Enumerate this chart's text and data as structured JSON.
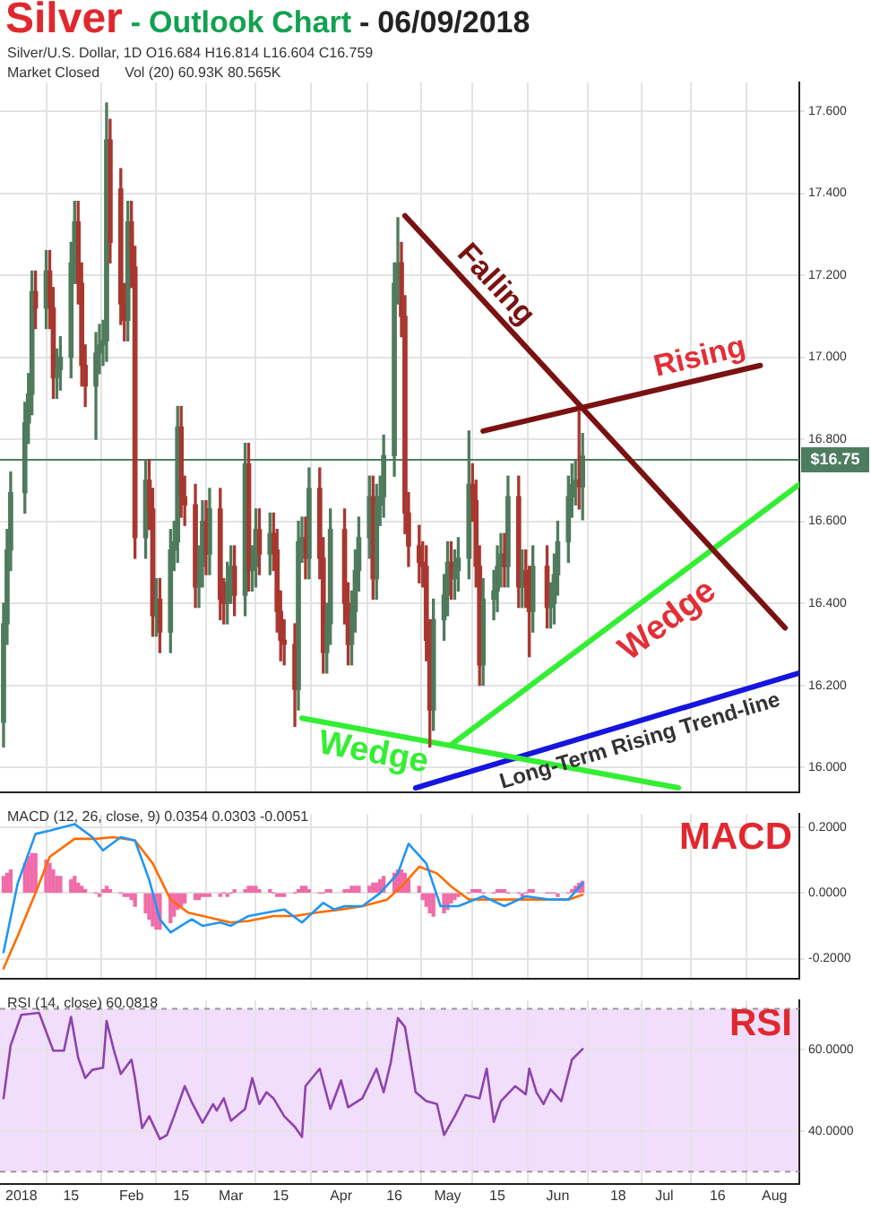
{
  "chart_data": [
    {
      "type": "candlestick",
      "title": "Silver - Outlook Chart - 06/09/2018",
      "subtitle": "Silver/U.S. Dollar, 1D  O16.684 H16.814 L16.604 C16.759",
      "annotations": [
        "Market Closed",
        "Vol (20)  60.93K  80.565K"
      ],
      "x": [
        "2017-12-27",
        "2017-12-28",
        "2017-12-29",
        "2018-01-02",
        "2018-01-03",
        "2018-01-04",
        "2018-01-05",
        "2018-01-08",
        "2018-01-09",
        "2018-01-10",
        "2018-01-11",
        "2018-01-12",
        "2018-01-15",
        "2018-01-16",
        "2018-01-17",
        "2018-01-18",
        "2018-01-19",
        "2018-01-22",
        "2018-01-23",
        "2018-01-24",
        "2018-01-25",
        "2018-01-26",
        "2018-01-29",
        "2018-01-30",
        "2018-01-31",
        "2018-02-01",
        "2018-02-02",
        "2018-02-05",
        "2018-02-06",
        "2018-02-07",
        "2018-02-08",
        "2018-02-09",
        "2018-02-12",
        "2018-02-13",
        "2018-02-14",
        "2018-02-15",
        "2018-02-16",
        "2018-02-19",
        "2018-02-20",
        "2018-02-21",
        "2018-02-22",
        "2018-02-23",
        "2018-02-26",
        "2018-02-27",
        "2018-02-28",
        "2018-03-01",
        "2018-03-02",
        "2018-03-05",
        "2018-03-06",
        "2018-03-07",
        "2018-03-08",
        "2018-03-09",
        "2018-03-12",
        "2018-03-13",
        "2018-03-14",
        "2018-03-15",
        "2018-03-16",
        "2018-03-19",
        "2018-03-20",
        "2018-03-21",
        "2018-03-22",
        "2018-03-23",
        "2018-03-26",
        "2018-03-27",
        "2018-03-28",
        "2018-03-29",
        "2018-04-02",
        "2018-04-03",
        "2018-04-04",
        "2018-04-05",
        "2018-04-06",
        "2018-04-09",
        "2018-04-10",
        "2018-04-11",
        "2018-04-12",
        "2018-04-13",
        "2018-04-16",
        "2018-04-17",
        "2018-04-18",
        "2018-04-19",
        "2018-04-20",
        "2018-04-23",
        "2018-04-24",
        "2018-04-25",
        "2018-04-26",
        "2018-04-27",
        "2018-04-30",
        "2018-05-01",
        "2018-05-02",
        "2018-05-03",
        "2018-05-04",
        "2018-05-07",
        "2018-05-08",
        "2018-05-09",
        "2018-05-10",
        "2018-05-11",
        "2018-05-14",
        "2018-05-15",
        "2018-05-16",
        "2018-05-17",
        "2018-05-18",
        "2018-05-21",
        "2018-05-22",
        "2018-05-23",
        "2018-05-24",
        "2018-05-25",
        "2018-05-29",
        "2018-05-30",
        "2018-05-31",
        "2018-06-01",
        "2018-06-04",
        "2018-06-05",
        "2018-06-06",
        "2018-06-07",
        "2018-06-08"
      ],
      "ohlc": [
        [
          16.11,
          16.4,
          16.05,
          16.35
        ],
        [
          16.35,
          16.58,
          16.3,
          16.53
        ],
        [
          16.53,
          16.72,
          16.48,
          16.67
        ],
        [
          16.67,
          16.89,
          16.62,
          16.84
        ],
        [
          16.84,
          16.96,
          16.79,
          16.91
        ],
        [
          16.91,
          17.21,
          16.86,
          17.16
        ],
        [
          17.16,
          17.21,
          17.07,
          17.12
        ],
        [
          17.12,
          17.26,
          17.07,
          17.21
        ],
        [
          17.21,
          17.26,
          17.07,
          17.12
        ],
        [
          17.12,
          17.17,
          16.9,
          16.95
        ],
        [
          16.95,
          17.02,
          16.9,
          16.97
        ],
        [
          16.97,
          17.05,
          16.92,
          17.0
        ],
        [
          17.0,
          17.28,
          16.95,
          17.23
        ],
        [
          17.23,
          17.38,
          17.18,
          17.33
        ],
        [
          17.33,
          17.38,
          17.13,
          17.18
        ],
        [
          17.18,
          17.23,
          16.93,
          16.98
        ],
        [
          16.98,
          17.03,
          16.88,
          16.93
        ],
        [
          16.93,
          17.06,
          16.8,
          17.01
        ],
        [
          17.01,
          17.08,
          16.96,
          17.03
        ],
        [
          17.03,
          17.09,
          16.98,
          17.04
        ],
        [
          17.04,
          17.62,
          16.99,
          17.53
        ],
        [
          17.53,
          17.58,
          17.23,
          17.28
        ],
        [
          17.41,
          17.46,
          17.08,
          17.13
        ],
        [
          17.13,
          17.18,
          17.04,
          17.09
        ],
        [
          17.09,
          17.38,
          17.04,
          17.33
        ],
        [
          17.33,
          17.38,
          17.17,
          17.22
        ],
        [
          17.22,
          17.27,
          16.51,
          16.56
        ],
        [
          16.56,
          16.75,
          16.51,
          16.7
        ],
        [
          16.7,
          16.75,
          16.58,
          16.63
        ],
        [
          16.63,
          16.68,
          16.32,
          16.37
        ],
        [
          16.37,
          16.46,
          16.32,
          16.41
        ],
        [
          16.41,
          16.46,
          16.28,
          16.33
        ],
        [
          16.33,
          16.58,
          16.28,
          16.53
        ],
        [
          16.53,
          16.6,
          16.48,
          16.55
        ],
        [
          16.55,
          16.88,
          16.5,
          16.83
        ],
        [
          16.83,
          16.88,
          16.61,
          16.66
        ],
        [
          16.66,
          16.71,
          16.59,
          16.64
        ],
        [
          16.64,
          16.69,
          16.39,
          16.44
        ],
        [
          16.44,
          16.54,
          16.39,
          16.49
        ],
        [
          16.49,
          16.65,
          16.44,
          16.6
        ],
        [
          16.6,
          16.65,
          16.47,
          16.52
        ],
        [
          16.52,
          16.68,
          16.47,
          16.63
        ],
        [
          16.63,
          16.68,
          16.36,
          16.41
        ],
        [
          16.41,
          16.46,
          16.35,
          16.4
        ],
        [
          16.4,
          16.5,
          16.35,
          16.45
        ],
        [
          16.45,
          16.54,
          16.4,
          16.49
        ],
        [
          16.49,
          16.54,
          16.37,
          16.42
        ],
        [
          16.42,
          16.79,
          16.37,
          16.74
        ],
        [
          16.74,
          16.79,
          16.43,
          16.48
        ],
        [
          16.48,
          16.54,
          16.43,
          16.49
        ],
        [
          16.49,
          16.63,
          16.44,
          16.58
        ],
        [
          16.58,
          16.63,
          16.47,
          16.52
        ],
        [
          16.52,
          16.62,
          16.47,
          16.57
        ],
        [
          16.57,
          16.62,
          16.48,
          16.53
        ],
        [
          16.53,
          16.58,
          16.33,
          16.38
        ],
        [
          16.38,
          16.43,
          16.26,
          16.31
        ],
        [
          16.31,
          16.36,
          16.25,
          16.3
        ],
        [
          16.3,
          16.35,
          16.1,
          16.19
        ],
        [
          16.19,
          16.6,
          16.14,
          16.55
        ],
        [
          16.55,
          16.61,
          16.5,
          16.56
        ],
        [
          16.56,
          16.61,
          16.46,
          16.51
        ],
        [
          16.51,
          16.73,
          16.46,
          16.68
        ],
        [
          16.68,
          16.73,
          16.46,
          16.51
        ],
        [
          16.51,
          16.56,
          16.23,
          16.28
        ],
        [
          16.28,
          16.4,
          16.23,
          16.35
        ],
        [
          16.35,
          16.63,
          16.3,
          16.58
        ],
        [
          16.58,
          16.63,
          16.35,
          16.4
        ],
        [
          16.4,
          16.45,
          16.25,
          16.3
        ],
        [
          16.3,
          16.43,
          16.25,
          16.38
        ],
        [
          16.38,
          16.53,
          16.33,
          16.48
        ],
        [
          16.48,
          16.61,
          16.43,
          16.56
        ],
        [
          16.56,
          16.71,
          16.51,
          16.66
        ],
        [
          16.66,
          16.71,
          16.41,
          16.46
        ],
        [
          16.46,
          16.69,
          16.41,
          16.64
        ],
        [
          16.64,
          16.71,
          16.59,
          16.66
        ],
        [
          16.66,
          16.81,
          16.61,
          16.76
        ],
        [
          16.76,
          17.23,
          16.71,
          17.18
        ],
        [
          17.18,
          17.34,
          17.13,
          17.23
        ],
        [
          17.23,
          17.28,
          17.05,
          17.1
        ],
        [
          17.1,
          17.15,
          16.57,
          16.62
        ],
        [
          16.62,
          16.67,
          16.49,
          16.54
        ],
        [
          16.54,
          16.59,
          16.45,
          16.5
        ],
        [
          16.5,
          16.55,
          16.44,
          16.49
        ],
        [
          16.49,
          16.54,
          16.26,
          16.31
        ],
        [
          16.31,
          16.36,
          16.05,
          16.14
        ],
        [
          16.14,
          16.41,
          16.09,
          16.36
        ],
        [
          16.36,
          16.47,
          16.31,
          16.42
        ],
        [
          16.42,
          16.55,
          16.37,
          16.5
        ],
        [
          16.5,
          16.55,
          16.41,
          16.46
        ],
        [
          16.46,
          16.53,
          16.41,
          16.48
        ],
        [
          16.48,
          16.56,
          16.43,
          16.51
        ],
        [
          16.51,
          16.82,
          16.46,
          16.69
        ],
        [
          16.69,
          16.74,
          16.6,
          16.65
        ],
        [
          16.65,
          16.7,
          16.44,
          16.49
        ],
        [
          16.49,
          16.54,
          16.2,
          16.25
        ],
        [
          16.25,
          16.46,
          16.2,
          16.41
        ],
        [
          16.41,
          16.48,
          16.36,
          16.43
        ],
        [
          16.43,
          16.54,
          16.38,
          16.49
        ],
        [
          16.49,
          16.57,
          16.44,
          16.52
        ],
        [
          16.52,
          16.57,
          16.44,
          16.49
        ],
        [
          16.49,
          16.71,
          16.44,
          16.66
        ],
        [
          16.66,
          16.71,
          16.39,
          16.44
        ],
        [
          16.44,
          16.53,
          16.39,
          16.48
        ],
        [
          16.48,
          16.53,
          16.39,
          16.44
        ],
        [
          16.44,
          16.49,
          16.27,
          16.38
        ],
        [
          16.38,
          16.54,
          16.33,
          16.49
        ],
        [
          16.49,
          16.54,
          16.34,
          16.39
        ],
        [
          16.39,
          16.45,
          16.34,
          16.4
        ],
        [
          16.4,
          16.52,
          16.35,
          16.47
        ],
        [
          16.47,
          16.6,
          16.42,
          16.55
        ],
        [
          16.55,
          16.71,
          16.5,
          16.66
        ],
        [
          16.66,
          16.74,
          16.61,
          16.69
        ],
        [
          16.69,
          16.75,
          16.64,
          16.7
        ],
        [
          16.7,
          16.87,
          16.63,
          16.684
        ],
        [
          16.684,
          16.814,
          16.604,
          16.759
        ]
      ],
      "colors": [
        "#4f7b5c",
        "#4f7b5c",
        "#4f7b5c",
        "#4f7b5c",
        "#4f7b5c",
        "#4f7b5c",
        "#a8372f",
        "#4f7b5c",
        "#a8372f",
        "#a8372f",
        "#4f7b5c",
        "#4f7b5c",
        "#4f7b5c",
        "#4f7b5c",
        "#a8372f",
        "#a8372f",
        "#a8372f",
        "#4f7b5c",
        "#4f7b5c",
        "#4f7b5c",
        "#4f7b5c",
        "#a8372f",
        "#a8372f",
        "#a8372f",
        "#4f7b5c",
        "#a8372f",
        "#a8372f",
        "#4f7b5c",
        "#a8372f",
        "#a8372f",
        "#4f7b5c",
        "#a8372f",
        "#4f7b5c",
        "#4f7b5c",
        "#4f7b5c",
        "#a8372f",
        "#a8372f",
        "#a8372f",
        "#4f7b5c",
        "#4f7b5c",
        "#a8372f",
        "#4f7b5c",
        "#a8372f",
        "#a8372f",
        "#4f7b5c",
        "#4f7b5c",
        "#a8372f",
        "#4f7b5c",
        "#a8372f",
        "#4f7b5c",
        "#4f7b5c",
        "#a8372f",
        "#4f7b5c",
        "#a8372f",
        "#a8372f",
        "#a8372f",
        "#a8372f",
        "#a8372f",
        "#4f7b5c",
        "#4f7b5c",
        "#a8372f",
        "#4f7b5c",
        "#a8372f",
        "#a8372f",
        "#4f7b5c",
        "#4f7b5c",
        "#a8372f",
        "#a8372f",
        "#4f7b5c",
        "#4f7b5c",
        "#4f7b5c",
        "#4f7b5c",
        "#a8372f",
        "#4f7b5c",
        "#4f7b5c",
        "#4f7b5c",
        "#4f7b5c",
        "#4f7b5c",
        "#a8372f",
        "#a8372f",
        "#a8372f",
        "#a8372f",
        "#a8372f",
        "#a8372f",
        "#a8372f",
        "#4f7b5c",
        "#4f7b5c",
        "#4f7b5c",
        "#a8372f",
        "#4f7b5c",
        "#4f7b5c",
        "#4f7b5c",
        "#a8372f",
        "#a8372f",
        "#a8372f",
        "#4f7b5c",
        "#4f7b5c",
        "#4f7b5c",
        "#4f7b5c",
        "#a8372f",
        "#4f7b5c",
        "#a8372f",
        "#4f7b5c",
        "#a8372f",
        "#a8372f",
        "#4f7b5c",
        "#a8372f",
        "#4f7b5c",
        "#4f7b5c",
        "#4f7b5c",
        "#4f7b5c",
        "#4f7b5c",
        "#4f7b5c",
        "#a8372f",
        "#4f7b5c"
      ],
      "series": [
        {
          "type": "line",
          "name": "Falling",
          "color": "#7a1212",
          "x": [
            "2018-04-19",
            "2018-08-04"
          ],
          "values": [
            17.345,
            16.34
          ]
        },
        {
          "type": "line",
          "name": "Rising",
          "color": "#7a1212",
          "x": [
            "2018-05-11",
            "2018-07-28"
          ],
          "values": [
            16.82,
            16.98
          ]
        },
        {
          "type": "line",
          "name": "Wedge",
          "color": "#33ee33",
          "x": [
            "2018-05-02",
            "2018-08-08"
          ],
          "values": [
            16.055,
            16.69
          ]
        },
        {
          "type": "line",
          "name": "Wedge",
          "color": "#33ee33",
          "x": [
            "2018-03-21",
            "2018-07-05"
          ],
          "values": [
            16.12,
            15.95
          ]
        },
        {
          "type": "line",
          "name": "Long-Term Rising Trend-line",
          "color": "#1515dd",
          "x": [
            "2018-04-22",
            "2018-08-08"
          ],
          "values": [
            15.95,
            16.23
          ]
        }
      ],
      "ref_lines": [
        {
          "axis": "y",
          "value": 16.75,
          "label": "$16.75",
          "color": "#4d7d5f"
        }
      ],
      "xlim": [
        "2017-12-26",
        "2018-08-08"
      ],
      "xticks": [
        {
          "value": "2018-01-01",
          "label": null
        },
        {
          "value": "2018-01-15",
          "label": null
        },
        {
          "value": "2018-02-01",
          "label": null
        },
        {
          "value": "2018-02-15",
          "label": null
        },
        {
          "value": "2018-03-01",
          "label": null
        },
        {
          "value": "2018-03-15",
          "label": null
        },
        {
          "value": "2018-04-01",
          "label": null
        },
        {
          "value": "2018-04-16",
          "label": null
        },
        {
          "value": "2018-05-01",
          "label": null
        },
        {
          "value": "2018-05-15",
          "label": null
        },
        {
          "value": "2018-06-01",
          "label": null
        },
        {
          "value": "2018-06-18",
          "label": null
        },
        {
          "value": "2018-07-01",
          "label": null
        },
        {
          "value": "2018-07-16",
          "label": null
        },
        {
          "value": "2018-08-01",
          "label": null
        }
      ],
      "ylim": [
        15.94,
        17.67
      ],
      "yticks": [
        {
          "value": 16,
          "label": "16.000"
        },
        {
          "value": 16.2,
          "label": "16.200"
        },
        {
          "value": 16.4,
          "label": "16.400"
        },
        {
          "value": 16.6,
          "label": "16.600"
        },
        {
          "value": 16.8,
          "label": "16.800"
        },
        {
          "value": 17,
          "label": "17.000"
        },
        {
          "value": 17.2,
          "label": "17.200"
        },
        {
          "value": 17.4,
          "label": "17.400"
        },
        {
          "value": 17.6,
          "label": "17.600"
        }
      ],
      "grid": true,
      "tick_labels": "y"
    },
    {
      "type": "line",
      "title": "MACD",
      "subtitle": "MACD (12, 26, close, 9)  0.0354  0.0303  -0.0051",
      "x": [
        "2017-12-27",
        "2017-12-28",
        "2017-12-29",
        "2018-01-02",
        "2018-01-03",
        "2018-01-04",
        "2018-01-05",
        "2018-01-08",
        "2018-01-09",
        "2018-01-10",
        "2018-01-11",
        "2018-01-12",
        "2018-01-15",
        "2018-01-16",
        "2018-01-17",
        "2018-01-18",
        "2018-01-19",
        "2018-01-22",
        "2018-01-23",
        "2018-01-24",
        "2018-01-25",
        "2018-01-26",
        "2018-01-29",
        "2018-01-30",
        "2018-01-31",
        "2018-02-01",
        "2018-02-02",
        "2018-02-05",
        "2018-02-06",
        "2018-02-07",
        "2018-02-08",
        "2018-02-09",
        "2018-02-12",
        "2018-02-13",
        "2018-02-14",
        "2018-02-15",
        "2018-02-16",
        "2018-02-19",
        "2018-02-20",
        "2018-02-21",
        "2018-02-22",
        "2018-02-23",
        "2018-02-26",
        "2018-02-27",
        "2018-02-28",
        "2018-03-01",
        "2018-03-02",
        "2018-03-05",
        "2018-03-06",
        "2018-03-07",
        "2018-03-08",
        "2018-03-09",
        "2018-03-12",
        "2018-03-13",
        "2018-03-14",
        "2018-03-15",
        "2018-03-16",
        "2018-03-19",
        "2018-03-20",
        "2018-03-21",
        "2018-03-22",
        "2018-03-23",
        "2018-03-26",
        "2018-03-27",
        "2018-03-28",
        "2018-03-29",
        "2018-04-02",
        "2018-04-03",
        "2018-04-04",
        "2018-04-05",
        "2018-04-06",
        "2018-04-09",
        "2018-04-10",
        "2018-04-11",
        "2018-04-12",
        "2018-04-13",
        "2018-04-16",
        "2018-04-17",
        "2018-04-18",
        "2018-04-19",
        "2018-04-20",
        "2018-04-23",
        "2018-04-24",
        "2018-04-25",
        "2018-04-26",
        "2018-04-27",
        "2018-04-30",
        "2018-05-01",
        "2018-05-02",
        "2018-05-03",
        "2018-05-04",
        "2018-05-07",
        "2018-05-08",
        "2018-05-09",
        "2018-05-10",
        "2018-05-11",
        "2018-05-14",
        "2018-05-15",
        "2018-05-16",
        "2018-05-17",
        "2018-05-18",
        "2018-05-21",
        "2018-05-22",
        "2018-05-23",
        "2018-05-24",
        "2018-05-25",
        "2018-05-29",
        "2018-05-30",
        "2018-05-31",
        "2018-06-01",
        "2018-06-04",
        "2018-06-05",
        "2018-06-06",
        "2018-06-07",
        "2018-06-08"
      ],
      "series": [
        {
          "type": "bar",
          "color": "#f06ba8",
          "values": [
            0.05,
            0.06,
            0.07,
            0.09,
            0.11,
            0.12,
            0.12,
            0.1,
            0.09,
            0.07,
            0.05,
            0.05,
            0.04,
            0.05,
            0.03,
            0.02,
            0.01,
            0.0,
            -0.01,
            0.01,
            0.02,
            0.01,
            0.0,
            -0.01,
            -0.01,
            -0.02,
            -0.04,
            -0.06,
            -0.08,
            -0.1,
            -0.11,
            -0.11,
            -0.09,
            -0.07,
            -0.05,
            -0.04,
            -0.03,
            -0.02,
            -0.02,
            -0.01,
            -0.01,
            -0.01,
            -0.01,
            0.0,
            -0.01,
            0.0,
            0.01,
            0.01,
            0.02,
            0.02,
            0.02,
            0.01,
            0.01,
            0.0,
            -0.01,
            -0.01,
            -0.01,
            0.0,
            0.01,
            0.02,
            0.02,
            0.01,
            0.0,
            0.0,
            0.01,
            0.01,
            0.01,
            0.01,
            0.02,
            0.02,
            0.02,
            0.02,
            0.03,
            0.03,
            0.04,
            0.05,
            0.06,
            0.07,
            0.07,
            0.06,
            0.04,
            0.02,
            -0.02,
            -0.04,
            -0.06,
            -0.07,
            -0.06,
            -0.05,
            -0.03,
            -0.02,
            -0.01,
            0.0,
            0.01,
            0.01,
            0.01,
            0.0,
            0.0,
            0.01,
            0.01,
            0.01,
            0.0,
            0.0,
            -0.01,
            0.0,
            0.01,
            0.01,
            0.0,
            0.0,
            0.0,
            -0.01,
            0.0,
            0.01,
            0.02,
            0.03,
            0.035
          ]
        },
        {
          "type": "line",
          "color": "#2196f3",
          "x": [
            "2017-12-27",
            "2017-12-31",
            "2018-01-05",
            "2018-01-09",
            "2018-01-16",
            "2018-01-21",
            "2018-01-24",
            "2018-01-29",
            "2018-02-02",
            "2018-02-06",
            "2018-02-09",
            "2018-02-12",
            "2018-02-15",
            "2018-02-18",
            "2018-02-21",
            "2018-02-26",
            "2018-03-01",
            "2018-03-06",
            "2018-03-11",
            "2018-03-16",
            "2018-03-21",
            "2018-03-27",
            "2018-03-30",
            "2018-04-02",
            "2018-04-07",
            "2018-04-12",
            "2018-04-17",
            "2018-04-20",
            "2018-04-25",
            "2018-04-29",
            "2018-05-04",
            "2018-05-11",
            "2018-05-17",
            "2018-05-23",
            "2018-05-30",
            "2018-06-04",
            "2018-06-08"
          ],
          "values": [
            -0.18,
            0.03,
            0.18,
            0.19,
            0.21,
            0.17,
            0.13,
            0.17,
            0.16,
            0.04,
            -0.08,
            -0.12,
            -0.1,
            -0.08,
            -0.1,
            -0.09,
            -0.1,
            -0.07,
            -0.06,
            -0.05,
            -0.09,
            -0.03,
            -0.05,
            -0.04,
            -0.04,
            0.0,
            0.06,
            0.15,
            0.09,
            -0.04,
            -0.04,
            -0.01,
            -0.04,
            -0.01,
            -0.02,
            -0.02,
            0.03
          ]
        },
        {
          "type": "line",
          "color": "#ff6d00",
          "x": [
            "2017-12-27",
            "2017-12-31",
            "2018-01-05",
            "2018-01-09",
            "2018-01-16",
            "2018-01-22",
            "2018-01-27",
            "2018-02-02",
            "2018-02-07",
            "2018-02-12",
            "2018-02-17",
            "2018-02-23",
            "2018-03-01",
            "2018-03-06",
            "2018-03-13",
            "2018-03-19",
            "2018-03-25",
            "2018-04-01",
            "2018-04-07",
            "2018-04-14",
            "2018-04-18",
            "2018-04-23",
            "2018-04-28",
            "2018-05-02",
            "2018-05-07",
            "2018-05-13",
            "2018-05-20",
            "2018-05-26",
            "2018-06-04",
            "2018-06-08"
          ],
          "values": [
            -0.23,
            -0.13,
            0.0,
            0.11,
            0.165,
            0.165,
            0.17,
            0.16,
            0.09,
            -0.02,
            -0.06,
            -0.075,
            -0.09,
            -0.085,
            -0.07,
            -0.07,
            -0.06,
            -0.05,
            -0.04,
            -0.02,
            0.02,
            0.08,
            0.06,
            0.02,
            -0.02,
            -0.02,
            -0.02,
            -0.02,
            -0.02,
            -0.005
          ]
        }
      ],
      "xlim": [
        "2017-12-26",
        "2018-08-08"
      ],
      "xticks": [
        {
          "value": "2018-01-01",
          "label": null
        },
        {
          "value": "2018-01-15",
          "label": null
        },
        {
          "value": "2018-02-01",
          "label": null
        },
        {
          "value": "2018-02-15",
          "label": null
        },
        {
          "value": "2018-03-01",
          "label": null
        },
        {
          "value": "2018-03-15",
          "label": null
        },
        {
          "value": "2018-04-01",
          "label": null
        },
        {
          "value": "2018-04-16",
          "label": null
        },
        {
          "value": "2018-05-01",
          "label": null
        },
        {
          "value": "2018-05-15",
          "label": null
        },
        {
          "value": "2018-06-01",
          "label": null
        },
        {
          "value": "2018-06-18",
          "label": null
        },
        {
          "value": "2018-07-01",
          "label": null
        },
        {
          "value": "2018-07-16",
          "label": null
        },
        {
          "value": "2018-08-01",
          "label": null
        }
      ],
      "ylim": [
        -0.26,
        0.24
      ],
      "yticks": [
        {
          "value": -0.2,
          "label": "-0.2000"
        },
        {
          "value": 0,
          "label": "0.0000"
        },
        {
          "value": 0.2,
          "label": "0.2000"
        }
      ],
      "grid": true,
      "tick_labels": "y"
    },
    {
      "type": "line",
      "title": "RSI",
      "subtitle": "RSI (14, close)  60.0818",
      "series": [
        {
          "type": "line",
          "color": "#8e44ad",
          "x": [
            "2017-12-27",
            "2017-12-29",
            "2018-01-01",
            "2018-01-06",
            "2018-01-10",
            "2018-01-13",
            "2018-01-15",
            "2018-01-17",
            "2018-01-19",
            "2018-01-21",
            "2018-01-24",
            "2018-01-25",
            "2018-01-27",
            "2018-01-29",
            "2018-02-01",
            "2018-02-02",
            "2018-02-04",
            "2018-02-06",
            "2018-02-09",
            "2018-02-11",
            "2018-02-13",
            "2018-02-16",
            "2018-02-18",
            "2018-02-21",
            "2018-02-24",
            "2018-02-25",
            "2018-02-27",
            "2018-03-01",
            "2018-03-05",
            "2018-03-07",
            "2018-03-09",
            "2018-03-11",
            "2018-03-13",
            "2018-03-16",
            "2018-03-19",
            "2018-03-21",
            "2018-03-22",
            "2018-03-26",
            "2018-03-29",
            "2018-04-01",
            "2018-04-03",
            "2018-04-07",
            "2018-04-11",
            "2018-04-13",
            "2018-04-15",
            "2018-04-17",
            "2018-04-19",
            "2018-04-22",
            "2018-04-25",
            "2018-04-28",
            "2018-04-30",
            "2018-05-03",
            "2018-05-06",
            "2018-05-10",
            "2018-05-12",
            "2018-05-14",
            "2018-05-16",
            "2018-05-20",
            "2018-05-23",
            "2018-05-24",
            "2018-05-26",
            "2018-05-28",
            "2018-05-30",
            "2018-06-02",
            "2018-06-05",
            "2018-06-08"
          ],
          "values": [
            48,
            61,
            68.5,
            69,
            59.7,
            59.7,
            68,
            58,
            53,
            55,
            55.5,
            67,
            60,
            54,
            57.5,
            53,
            40.7,
            43.6,
            38,
            39,
            43.6,
            51,
            47,
            42,
            46.6,
            45,
            48,
            42.5,
            45.4,
            53,
            46.6,
            49.5,
            48,
            43.6,
            41,
            38.5,
            51,
            55.3,
            45.4,
            52.4,
            45.8,
            48,
            55.3,
            49.5,
            56.8,
            67.7,
            65.5,
            49.5,
            47.3,
            46.6,
            39,
            43.6,
            48.8,
            48,
            55.3,
            42.2,
            47.3,
            51,
            49,
            55.3,
            49.5,
            46.6,
            50.2,
            47.3,
            57.5,
            60.1
          ]
        }
      ],
      "bands": [
        {
          "axis": "y",
          "from": 30,
          "to": 70,
          "color": "#f1defc"
        }
      ],
      "ref_lines": [
        {
          "axis": "y",
          "value": 70,
          "line_style": "dashed",
          "color": "#9a9a9a"
        },
        {
          "axis": "y",
          "value": 30,
          "line_style": "dashed",
          "color": "#9a9a9a"
        }
      ],
      "xlim": [
        "2017-12-26",
        "2018-08-08"
      ],
      "xticks": [
        {
          "value": "2018-01-01",
          "label": "2018"
        },
        {
          "value": "2018-01-15",
          "label": "15"
        },
        {
          "value": "2018-02-01",
          "label": "Feb"
        },
        {
          "value": "2018-02-15",
          "label": "15"
        },
        {
          "value": "2018-03-01",
          "label": "Mar"
        },
        {
          "value": "2018-03-15",
          "label": "15"
        },
        {
          "value": "2018-04-01",
          "label": "Apr"
        },
        {
          "value": "2018-04-16",
          "label": "16"
        },
        {
          "value": "2018-05-01",
          "label": "May"
        },
        {
          "value": "2018-05-15",
          "label": "15"
        },
        {
          "value": "2018-06-01",
          "label": "Jun"
        },
        {
          "value": "2018-06-18",
          "label": "18"
        },
        {
          "value": "2018-07-01",
          "label": "Jul"
        },
        {
          "value": "2018-07-16",
          "label": "16"
        },
        {
          "value": "2018-08-01",
          "label": "Aug"
        }
      ],
      "ylim": [
        27,
        72
      ],
      "yticks": [
        {
          "value": 40,
          "label": "40.0000"
        },
        {
          "value": 60,
          "label": "60.0000"
        }
      ],
      "grid": true
    }
  ]
}
